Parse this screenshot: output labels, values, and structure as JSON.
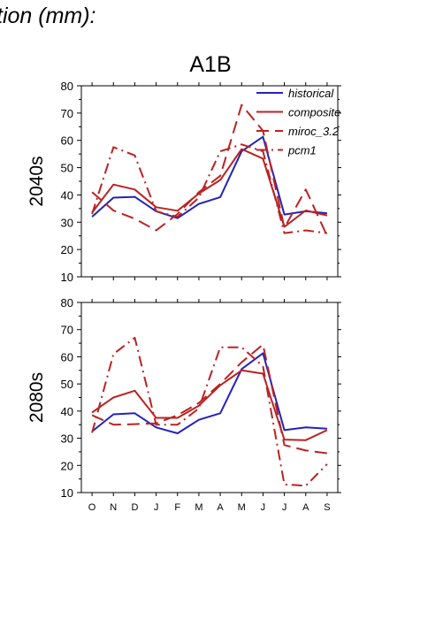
{
  "header": {
    "title": "tion (mm):"
  },
  "figure": {
    "scenario": "A1B"
  },
  "chart_data": [
    {
      "type": "line",
      "panel_label": "2040s",
      "x": [
        "O",
        "N",
        "D",
        "J",
        "F",
        "M",
        "A",
        "M",
        "J",
        "J",
        "A",
        "S"
      ],
      "ylim": [
        10,
        80
      ],
      "yticks": [
        10,
        20,
        30,
        40,
        50,
        60,
        70,
        80
      ],
      "legend_position": "top-right",
      "series": [
        {
          "name": "historical",
          "color": "#2222bb",
          "dash": "solid",
          "values": [
            32,
            39,
            39.3,
            34,
            31.5,
            36.7,
            39.2,
            56,
            61.3,
            32.8,
            34,
            33.3
          ]
        },
        {
          "name": "composite",
          "color": "#bb2222",
          "dash": "solid",
          "values": [
            33.5,
            43.8,
            42,
            35.5,
            34.2,
            40.5,
            45.5,
            56.8,
            53.3,
            28.3,
            34.3,
            32.5
          ]
        },
        {
          "name": "miroc_3.2",
          "color": "#bb2222",
          "dash": "longdash",
          "values": [
            41,
            34.3,
            31.3,
            27,
            33,
            41,
            47,
            73,
            63.5,
            28,
            42,
            25
          ]
        },
        {
          "name": "pcm1",
          "color": "#bb2222",
          "dash": "dashdot",
          "values": [
            33,
            57.5,
            54.5,
            34,
            32,
            39,
            56,
            58.5,
            56,
            26,
            27,
            26
          ]
        }
      ]
    },
    {
      "type": "line",
      "panel_label": "2080s",
      "x": [
        "O",
        "N",
        "D",
        "J",
        "F",
        "M",
        "A",
        "M",
        "J",
        "J",
        "A",
        "S"
      ],
      "ylim": [
        10,
        80
      ],
      "yticks": [
        10,
        20,
        30,
        40,
        50,
        60,
        70,
        80
      ],
      "series": [
        {
          "name": "historical",
          "color": "#2222bb",
          "dash": "solid",
          "values": [
            32.5,
            38.8,
            39.2,
            34,
            31.8,
            36.8,
            39.2,
            55.5,
            61.3,
            33,
            34,
            33.5
          ]
        },
        {
          "name": "composite",
          "color": "#bb2222",
          "dash": "solid",
          "values": [
            39.5,
            45,
            47.5,
            37.5,
            37.5,
            42,
            49.5,
            55,
            53.8,
            29.5,
            29.3,
            33
          ]
        },
        {
          "name": "miroc_3.2",
          "color": "#bb2222",
          "dash": "longdash",
          "values": [
            38.5,
            35,
            35.2,
            35.5,
            38.5,
            43,
            50,
            58,
            64.5,
            27.5,
            25.5,
            24.5
          ]
        },
        {
          "name": "pcm1",
          "color": "#bb2222",
          "dash": "dashdot",
          "values": [
            32,
            61,
            67,
            35,
            35,
            41,
            63.5,
            63.5,
            56.5,
            13,
            12.5,
            20.5
          ]
        }
      ]
    }
  ]
}
